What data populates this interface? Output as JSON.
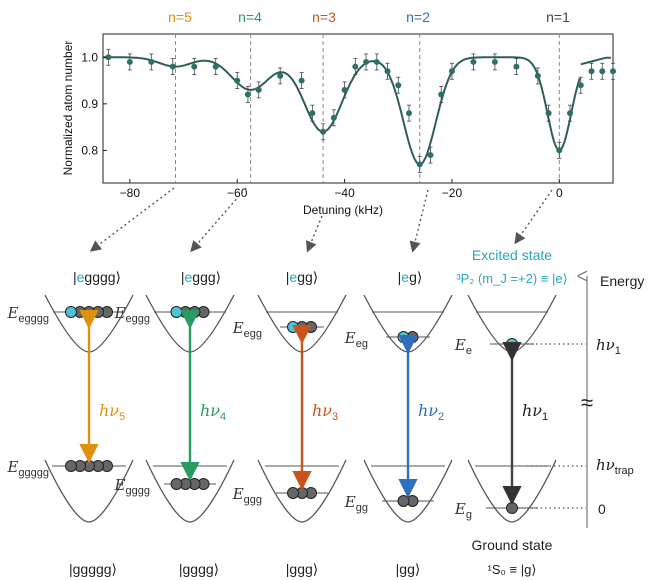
{
  "plot": {
    "ylabel": "Normalized atom number",
    "xlabel": "Detuning (kHz)",
    "x_ticks": [
      "−80",
      "−60",
      "−40",
      "−20",
      "0"
    ],
    "y_ticks": [
      "0.8",
      "0.9",
      "1.0"
    ]
  },
  "peaks": [
    {
      "label": "n=5",
      "color": "#e0900f"
    },
    {
      "label": "n=4",
      "color": "#2a9a63"
    },
    {
      "label": "n=3",
      "color": "#c8541c"
    },
    {
      "label": "n=2",
      "color": "#2f6fc0"
    },
    {
      "label": "n=1",
      "color": "#444444"
    }
  ],
  "chart_data": {
    "type": "scatter",
    "xlabel": "Detuning (kHz)",
    "ylabel": "Normalized atom number",
    "xlim": [
      -85,
      10
    ],
    "ylim": [
      0.73,
      1.05
    ],
    "grid": false,
    "resonances_khz": [
      -71.5,
      -57.5,
      -44,
      -26,
      0
    ],
    "series": [
      {
        "x": [
          -84,
          -80,
          -76,
          -72,
          -68,
          -64,
          -60,
          -58,
          -56,
          -52,
          -48,
          -46,
          -44,
          -42,
          -40,
          -38,
          -36,
          -34,
          -32,
          -30,
          -28,
          -26,
          -24,
          -22,
          -20,
          -16,
          -12,
          -8,
          -4,
          -2,
          0,
          2,
          4,
          6,
          8,
          10
        ],
        "y": [
          1.0,
          0.99,
          0.99,
          0.98,
          0.98,
          0.98,
          0.95,
          0.92,
          0.93,
          0.96,
          0.95,
          0.88,
          0.84,
          0.87,
          0.93,
          0.98,
          0.99,
          0.99,
          0.97,
          0.94,
          0.88,
          0.77,
          0.79,
          0.92,
          0.97,
          0.99,
          0.99,
          0.98,
          0.96,
          0.88,
          0.8,
          0.88,
          0.94,
          0.97,
          0.97,
          0.97
        ]
      }
    ]
  },
  "states": {
    "top": [
      "|egggg⟩",
      "|eggg⟩",
      "|egg⟩",
      "|eg⟩"
    ],
    "bottom": [
      "|ggggg⟩",
      "|gggg⟩",
      "|ggg⟩",
      "|gg⟩"
    ],
    "e_highlight": "e",
    "excited_title": "Excited state",
    "excited_def": "³P₂ (m_J =+2) ≡ |e⟩",
    "ground_title": "Ground state",
    "ground_def": "¹S₀ ≡ |g⟩"
  },
  "energies": {
    "upper": [
      "egggg",
      "eggg",
      "egg",
      "eg",
      "e"
    ],
    "lower": [
      "gggg",
      "gggg",
      "ggg",
      "gg",
      "g"
    ],
    "upper_first": "egggg",
    "lower_first": "ggggg"
  },
  "photons": [
    "5",
    "4",
    "3",
    "2",
    "1"
  ],
  "axis": {
    "label": "Energy",
    "hv1": "1",
    "hvtrap": "trap",
    "zero": "0",
    "approx": "≈"
  },
  "colors": {
    "fit": "#2e5f5a",
    "points": "#2e6f67",
    "atom_e": "#4ec3d6",
    "atom_g": "#666666",
    "excited_text": "#2aa6b8"
  }
}
